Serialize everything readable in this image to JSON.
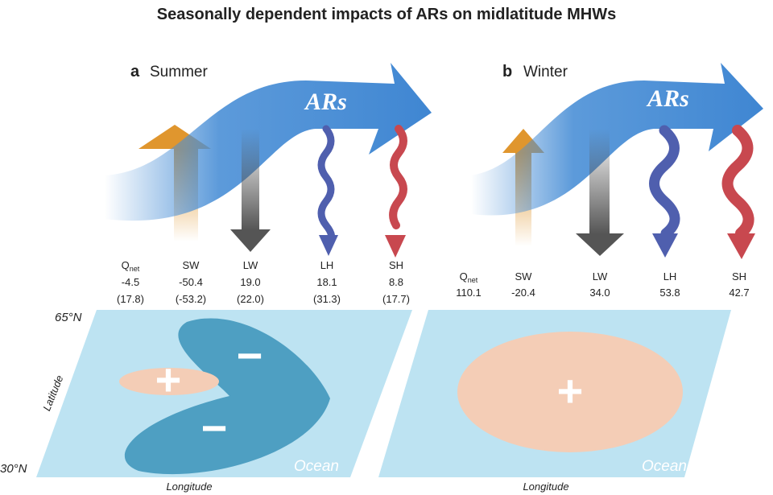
{
  "title": "Seasonally dependent impacts of ARs on midlatitude MHWs",
  "panels": [
    {
      "label": "a",
      "season": "Summer",
      "arrow_label": "ARs",
      "fluxes": [
        {
          "name": "Q",
          "subscript": "net",
          "value": "-4.5",
          "paren": "(17.8)"
        },
        {
          "name": "SW",
          "value": "-50.4",
          "paren": "(-53.2)"
        },
        {
          "name": "LW",
          "value": "19.0",
          "paren": "(22.0)"
        },
        {
          "name": "LH",
          "value": "18.1",
          "paren": "(31.3)"
        },
        {
          "name": "SH",
          "value": "8.8",
          "paren": "(17.7)"
        }
      ],
      "lat_top": "65°N",
      "lat_bottom": "30°N",
      "y_axis": "Latitude",
      "x_axis": "Longitude",
      "ocean": "Ocean",
      "signs": [
        "+",
        "−",
        "−"
      ]
    },
    {
      "label": "b",
      "season": "Winter",
      "arrow_label": "ARs",
      "fluxes": [
        {
          "name": "Q",
          "subscript": "net",
          "value": "110.1"
        },
        {
          "name": "SW",
          "value": "-20.4"
        },
        {
          "name": "LW",
          "value": "34.0"
        },
        {
          "name": "LH",
          "value": "53.8"
        },
        {
          "name": "SH",
          "value": "42.7"
        }
      ],
      "x_axis": "Longitude",
      "ocean": "Ocean",
      "signs": [
        "+"
      ]
    }
  ]
}
